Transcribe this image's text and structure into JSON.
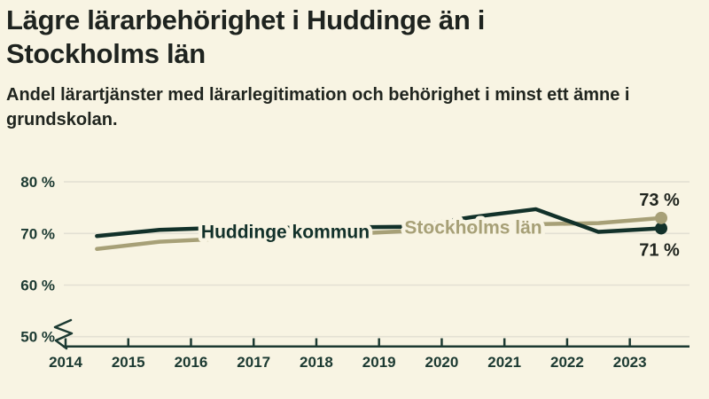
{
  "header": {
    "title_lines": [
      "Lägre lärarbehörighet i Huddinge än i",
      "Stockholms län"
    ],
    "subtitle_lines": [
      "Andel lärartjänster med lärarlegitimation och behörighet i minst ett ämne i",
      "grundskolan."
    ]
  },
  "colors": {
    "background": "#f8f4e3",
    "title_text": "#1e231f",
    "axis": "#1c3a32",
    "tick_label": "#1c3a32",
    "gridline": "#e3e0d3",
    "value_label": "#20251f",
    "huddinge_line": "#12312a",
    "stockholm_line": "#a7a077"
  },
  "chart_data": {
    "type": "line",
    "title": "Lägre lärarbehörighet i Huddinge än i Stockholms län",
    "subtitle": "Andel lärartjänster med lärarlegitimation och behörighet i minst ett ämne i grundskolan.",
    "x": [
      2014.5,
      2015.5,
      2016.5,
      2017.5,
      2018.5,
      2019.5,
      2020.5,
      2021.5,
      2022.5,
      2023.5
    ],
    "x_ticks": [
      "2014",
      "2015",
      "2016",
      "2017",
      "2018",
      "2019",
      "2020",
      "2021",
      "2022",
      "2023"
    ],
    "y_tick_values": [
      80,
      70,
      60,
      50
    ],
    "y_tick_labels": [
      "80 %",
      "70 %",
      "60 %",
      "50 %"
    ],
    "ylim": [
      48,
      82
    ],
    "grid": "horizontal",
    "axis_break": true,
    "legend_position": "inline-labels",
    "series": [
      {
        "name": "Huddinge kommun",
        "color": "#12312a",
        "values": [
          69.5,
          70.7,
          71.1,
          71.1,
          71.2,
          71.3,
          73.2,
          74.7,
          70.3,
          71
        ],
        "end_label": "71 %",
        "end_label_position": "below",
        "end_dot": true
      },
      {
        "name": "Stockholms län",
        "color": "#a7a077",
        "values": [
          67,
          68.4,
          69,
          69.4,
          69.9,
          70.5,
          71.1,
          71.8,
          72,
          73
        ],
        "end_label": "73 %",
        "end_label_position": "above",
        "end_dot": true
      }
    ]
  }
}
